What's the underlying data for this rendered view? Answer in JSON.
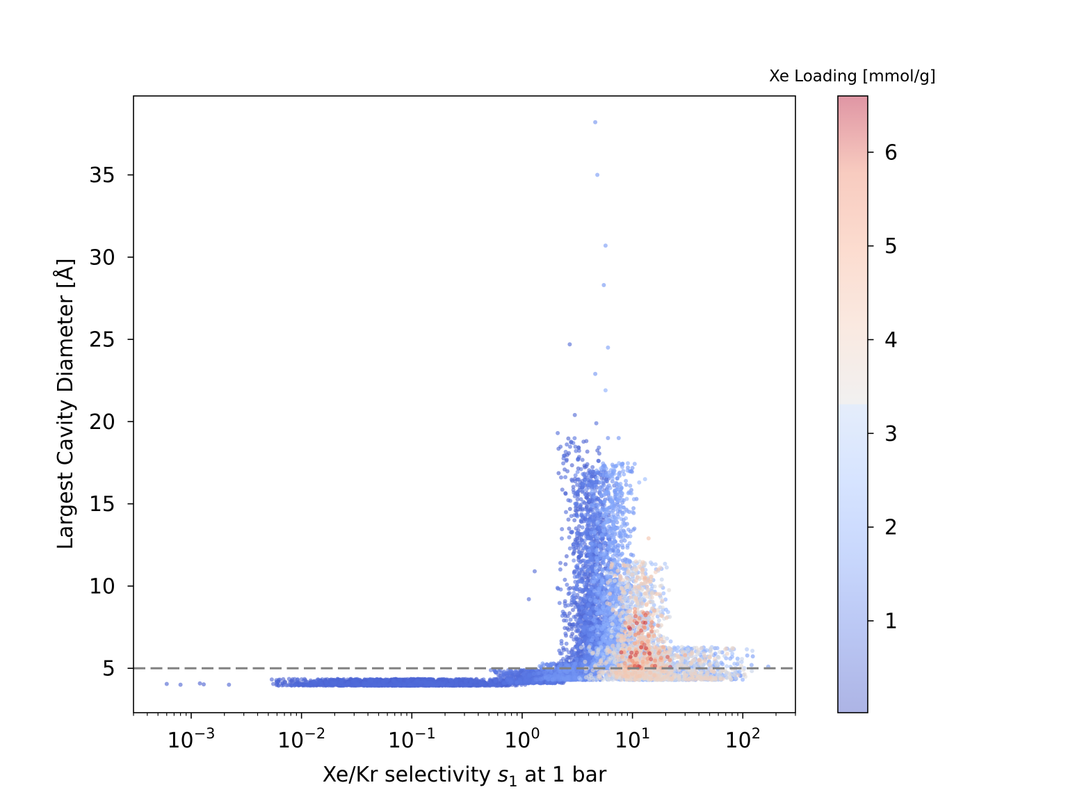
{
  "chart_data": {
    "type": "scatter",
    "title": "",
    "xlabel": {
      "prefix": "Xe/Kr selectivity ",
      "var": "s",
      "sub": "1",
      "suffix": " at 1 bar"
    },
    "ylabel": "Largest Cavity Diameter [Å]",
    "x_scale": "log",
    "xlim": [
      0.0003,
      300
    ],
    "ylim": [
      2.3,
      39.8
    ],
    "x_ticks": [
      {
        "value": 0.001,
        "base": "10",
        "exp": "−3"
      },
      {
        "value": 0.01,
        "base": "10",
        "exp": "−2"
      },
      {
        "value": 0.1,
        "base": "10",
        "exp": "−1"
      },
      {
        "value": 1,
        "base": "10",
        "exp": "0"
      },
      {
        "value": 10,
        "base": "10",
        "exp": "1"
      },
      {
        "value": 100,
        "base": "10",
        "exp": "2"
      }
    ],
    "y_ticks": [
      {
        "value": 5,
        "label": "5"
      },
      {
        "value": 10,
        "label": "10"
      },
      {
        "value": 15,
        "label": "15"
      },
      {
        "value": 20,
        "label": "20"
      },
      {
        "value": 25,
        "label": "25"
      },
      {
        "value": 30,
        "label": "30"
      },
      {
        "value": 35,
        "label": "35"
      }
    ],
    "reference_line": {
      "axis": "y",
      "value": 5,
      "style": "dashed",
      "color": "#808080"
    },
    "grid": false,
    "colormap": "coolwarm",
    "point_alpha": 0.6,
    "colorbar": {
      "title": "Xe Loading [mmol/g]",
      "range": [
        0.02,
        6.6
      ],
      "ticks": [
        {
          "value": 1,
          "label": "1"
        },
        {
          "value": 2,
          "label": "2"
        },
        {
          "value": 3,
          "label": "3"
        },
        {
          "value": 4,
          "label": "4"
        },
        {
          "value": 5,
          "label": "5"
        },
        {
          "value": 6,
          "label": "6"
        }
      ]
    },
    "series": [
      {
        "points": [
          {
            "x": 0.0006,
            "y": 4.05,
            "c": 0.4
          },
          {
            "x": 0.0008,
            "y": 4.0,
            "c": 0.4
          },
          {
            "x": 0.0012,
            "y": 4.08,
            "c": 0.35
          },
          {
            "x": 0.0013,
            "y": 4.02,
            "c": 0.35
          },
          {
            "x": 0.0022,
            "y": 4.0,
            "c": 0.4
          },
          {
            "x": 4.6,
            "y": 38.2,
            "c": 1.3
          },
          {
            "x": 4.8,
            "y": 35.0,
            "c": 1.5
          },
          {
            "x": 5.7,
            "y": 30.7,
            "c": 1.5
          },
          {
            "x": 5.5,
            "y": 28.3,
            "c": 1.4
          },
          {
            "x": 2.7,
            "y": 24.7,
            "c": 0.5
          },
          {
            "x": 6.0,
            "y": 24.5,
            "c": 1.6
          },
          {
            "x": 4.6,
            "y": 22.9,
            "c": 1.4
          },
          {
            "x": 5.7,
            "y": 21.9,
            "c": 2.0
          },
          {
            "x": 3.0,
            "y": 20.4,
            "c": 0.5
          },
          {
            "x": 4.7,
            "y": 19.9,
            "c": 0.6
          },
          {
            "x": 2.1,
            "y": 19.3,
            "c": 0.6
          },
          {
            "x": 6.0,
            "y": 19.0,
            "c": 1.2
          },
          {
            "x": 7.5,
            "y": 19.0,
            "c": 1.4
          },
          {
            "x": 13.0,
            "y": 16.5,
            "c": 2.4
          },
          {
            "x": 11.5,
            "y": 16.3,
            "c": 2.2
          },
          {
            "x": 14.0,
            "y": 12.9,
            "c": 4.4
          },
          {
            "x": 1.3,
            "y": 10.9,
            "c": 0.5
          },
          {
            "x": 1.15,
            "y": 9.2,
            "c": 0.5
          },
          {
            "x": 9.5,
            "y": 7.4,
            "c": 6.3
          },
          {
            "x": 12.0,
            "y": 7.3,
            "c": 6.1
          },
          {
            "x": 15.0,
            "y": 7.8,
            "c": 5.6
          },
          {
            "x": 17.0,
            "y": 7.6,
            "c": 5.3
          },
          {
            "x": 10.5,
            "y": 8.6,
            "c": 5.2
          },
          {
            "x": 13.0,
            "y": 10.5,
            "c": 4.6
          },
          {
            "x": 19.0,
            "y": 6.3,
            "c": 5.0
          },
          {
            "x": 30.0,
            "y": 5.8,
            "c": 4.8
          },
          {
            "x": 40.0,
            "y": 5.5,
            "c": 4.6
          },
          {
            "x": 170.0,
            "y": 5.1,
            "c": 1.6
          },
          {
            "x": 120.0,
            "y": 5.2,
            "c": 1.8
          },
          {
            "x": 80.0,
            "y": 5.7,
            "c": 2.0
          }
        ],
        "clusters": [
          {
            "x_log10": [
              -2.3,
              0.1
            ],
            "y": [
              3.95,
              4.35
            ],
            "c": [
              0.3,
              0.6
            ],
            "n": 1600
          },
          {
            "x_log10": [
              -0.3,
              0.45
            ],
            "y": [
              4.1,
              4.9
            ],
            "c": [
              0.4,
              0.9
            ],
            "n": 500
          },
          {
            "x_log10": [
              0.3,
              0.75
            ],
            "y": [
              5.0,
              19.0
            ],
            "c": [
              0.3,
              0.8
            ],
            "n": 450
          },
          {
            "x_log10": [
              0.45,
              0.85
            ],
            "y": [
              5.0,
              17.0
            ],
            "c": [
              0.3,
              1.2
            ],
            "n": 1500
          },
          {
            "x_log10": [
              0.6,
              1.05
            ],
            "y": [
              5.0,
              17.5
            ],
            "c": [
              1.2,
              2.1
            ],
            "n": 1300
          },
          {
            "x_log10": [
              0.75,
              1.35
            ],
            "y": [
              4.5,
              11.5
            ],
            "c": [
              2.0,
              4.3
            ],
            "n": 1100
          },
          {
            "x_log10": [
              0.85,
              1.35
            ],
            "y": [
              5.0,
              8.5
            ],
            "c": [
              3.6,
              6.3
            ],
            "n": 150
          },
          {
            "x_log10": [
              0.5,
              2.1
            ],
            "y": [
              4.3,
              6.3
            ],
            "c": [
              1.5,
              4.0
            ],
            "n": 1500
          },
          {
            "x_log10": [
              0.1,
              0.75
            ],
            "y": [
              4.3,
              5.3
            ],
            "c": [
              0.5,
              1.5
            ],
            "n": 600
          }
        ]
      }
    ]
  }
}
